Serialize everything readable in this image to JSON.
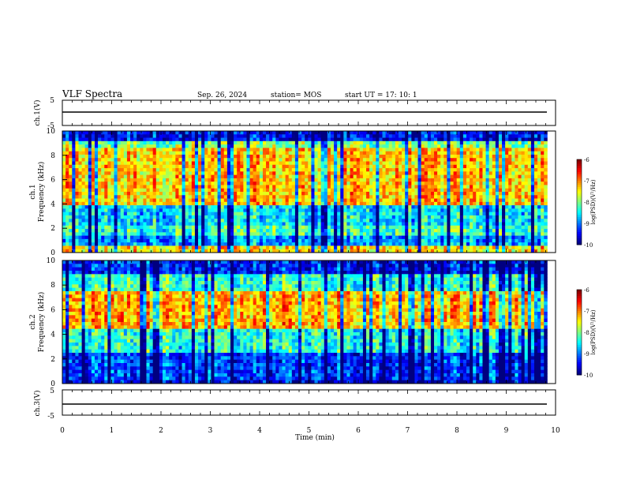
{
  "header": {
    "title": "VLF Spectra",
    "date": "Sep. 26, 2024",
    "station": "station= MOS",
    "start_ut": "start  UT  =   17: 10: 1"
  },
  "chart_data": [
    {
      "type": "line",
      "name_label": "ch.1(V)",
      "ylim": [
        -5,
        5
      ],
      "y_ticks": [
        "5",
        "-5"
      ],
      "y_value_approx": -0.2,
      "x_range_min": [
        0,
        9.83
      ]
    },
    {
      "type": "heatmap",
      "ylabel": "ch.1\nFrequency (kHz)",
      "ylim": [
        0,
        10
      ],
      "y_ticks": [
        "0",
        "2",
        "4",
        "6",
        "8",
        "10"
      ],
      "x_range_min": [
        0,
        9.83
      ],
      "colorbar": {
        "label": "log(PSD)(V²/Hz)",
        "range": [
          -10,
          -6
        ],
        "ticks": [
          "-6",
          "-7",
          "-8",
          "-9",
          "-10"
        ]
      },
      "bands_log_psd": [
        {
          "freq_khz": [
            0,
            0.5
          ],
          "level": -7.4
        },
        {
          "freq_khz": [
            0.5,
            1.5
          ],
          "level": -8.9
        },
        {
          "freq_khz": [
            1.5,
            2.2
          ],
          "level": -8.3
        },
        {
          "freq_khz": [
            2.2,
            4
          ],
          "level": -8.6
        },
        {
          "freq_khz": [
            4,
            8.5
          ],
          "level": -7.3
        },
        {
          "freq_khz": [
            8.5,
            9.3
          ],
          "level": -8.0
        },
        {
          "freq_khz": [
            9.3,
            10
          ],
          "level": -9.5
        }
      ]
    },
    {
      "type": "heatmap",
      "ylabel": "ch.2\nFrequency (kHz)",
      "ylim": [
        0,
        10
      ],
      "y_ticks": [
        "0",
        "2",
        "4",
        "6",
        "8",
        "10"
      ],
      "x_range_min": [
        0,
        9.83
      ],
      "colorbar": {
        "label": "log(PSD)(V²/Hz)",
        "range": [
          -10,
          -6
        ],
        "ticks": [
          "-6",
          "-7",
          "-8",
          "-9",
          "-10"
        ]
      },
      "bands_log_psd": [
        {
          "freq_khz": [
            0,
            0.4
          ],
          "level": -9.6
        },
        {
          "freq_khz": [
            0.4,
            2.5
          ],
          "level": -9.3
        },
        {
          "freq_khz": [
            2.5,
            4.5
          ],
          "level": -8.4
        },
        {
          "freq_khz": [
            4.5,
            7.5
          ],
          "level": -7.2
        },
        {
          "freq_khz": [
            7.5,
            9
          ],
          "level": -8.3
        },
        {
          "freq_khz": [
            9,
            10
          ],
          "level": -9.4
        }
      ]
    },
    {
      "type": "line",
      "name_label": "ch.3(V)",
      "ylim": [
        -5,
        5
      ],
      "y_ticks": [
        "5",
        "-5"
      ],
      "y_value_approx": -0.2,
      "x_range_min": [
        0,
        9.83
      ],
      "xlabel": "Time  (min)",
      "x_ticks": [
        "0",
        "1",
        "2",
        "3",
        "4",
        "5",
        "6",
        "7",
        "8",
        "9",
        "10"
      ]
    }
  ]
}
